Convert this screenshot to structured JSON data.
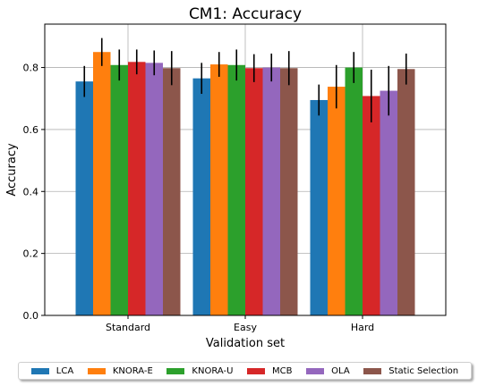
{
  "chart_data": {
    "type": "bar",
    "title": "CM1: Accuracy",
    "xlabel": "Validation set",
    "ylabel": "Accuracy",
    "ylim": [
      0,
      0.94
    ],
    "yticks": [
      0.0,
      0.2,
      0.4,
      0.6,
      0.8
    ],
    "ytick_labels": [
      "0.0",
      "0.2",
      "0.4",
      "0.6",
      "0.8"
    ],
    "grid": true,
    "legend_position": "bottom",
    "categories": [
      "Standard",
      "Easy",
      "Hard"
    ],
    "series": [
      {
        "name": "LCA",
        "color": "#1f77b4",
        "values": [
          0.755,
          0.765,
          0.695
        ],
        "errors": [
          0.05,
          0.05,
          0.05
        ]
      },
      {
        "name": "KNORA-E",
        "color": "#ff7f0e",
        "values": [
          0.85,
          0.81,
          0.738
        ],
        "errors": [
          0.045,
          0.04,
          0.07
        ]
      },
      {
        "name": "KNORA-U",
        "color": "#2ca02c",
        "values": [
          0.808,
          0.808,
          0.8
        ],
        "errors": [
          0.05,
          0.05,
          0.05
        ]
      },
      {
        "name": "MCB",
        "color": "#d62728",
        "values": [
          0.818,
          0.798,
          0.708
        ],
        "errors": [
          0.04,
          0.045,
          0.085
        ]
      },
      {
        "name": "OLA",
        "color": "#9467bd",
        "values": [
          0.815,
          0.8,
          0.725
        ],
        "errors": [
          0.04,
          0.045,
          0.08
        ]
      },
      {
        "name": "Static Selection",
        "color": "#8c564b",
        "values": [
          0.798,
          0.798,
          0.795
        ],
        "errors": [
          0.055,
          0.055,
          0.05
        ]
      }
    ]
  }
}
